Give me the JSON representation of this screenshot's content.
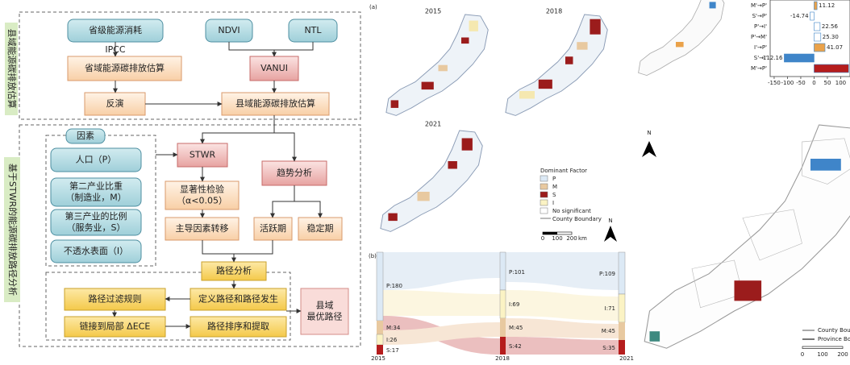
{
  "flowchart": {
    "section1_label": "县域能源碳排放估算",
    "section2_label": "基于STWR的能源碳排放路径分析",
    "provincial_energy": "省级能源消耗",
    "ndvi": "NDVI",
    "ntl": "NTL",
    "ipcc": "IPCC",
    "provincial_carbon": "省域能源碳排放估算",
    "vanui": "VANUI",
    "inversion": "反演",
    "county_carbon": "县域能源碳排放估算",
    "factors_title": "因素",
    "factors": [
      [
        "人口（P）"
      ],
      [
        "第二产业比重",
        "（制造业，M）"
      ],
      [
        "第三产业的比例",
        "（服务业，S）"
      ],
      [
        "不透水表面（I）"
      ]
    ],
    "stwr": "STWR",
    "significance": [
      "显著性检验",
      "（α<0.05）"
    ],
    "dominant_shift": "主导因素转移",
    "trend": "趋势分析",
    "active": "活跃期",
    "stable": "稳定期",
    "path_analysis": "路径分析",
    "filter": "路径过滤规则",
    "define": "定义路径和路径发生",
    "link": "链接到局部 ΔECE",
    "rank": "路径排序和提取",
    "optimal": [
      "县域",
      "最优路径"
    ]
  },
  "map_panel": {
    "label": "(a)",
    "years": [
      "2015",
      "2018",
      "2021"
    ],
    "legend": {
      "title": "Dominant Factor",
      "items": [
        "P",
        "M",
        "S",
        "I",
        "No significant"
      ],
      "boundary": "County  Boundary"
    },
    "scale": [
      "0",
      "100",
      "200"
    ],
    "scale_unit": "km",
    "north": "N"
  },
  "sankey": {
    "label": "(b)",
    "columns": [
      {
        "year": "2015",
        "nodes": [
          "P:180",
          "M:34",
          "I:26",
          "S:17"
        ]
      },
      {
        "year": "2018",
        "nodes": [
          "P:101",
          "I:69",
          "M:45",
          "S:42"
        ]
      },
      {
        "year": "2021",
        "nodes": [
          "P:109",
          "I:71",
          "M:45",
          "S:35"
        ]
      }
    ]
  },
  "bar_chart": {
    "type": "bar",
    "orientation": "horizontal",
    "categories": [
      "M'→P'",
      "S'→P'",
      "P'→I'",
      "P'→M'",
      "I'→P'",
      "S'→I'",
      "M'→P'"
    ],
    "values": [
      11.12,
      -14.74,
      22.56,
      25.3,
      41.07,
      -112.16,
      130
    ],
    "value_labels": [
      "11.12",
      "-14.74",
      "22.56",
      "25.30",
      "41.07",
      "-112.16",
      null
    ],
    "colors": [
      "#eaa24a",
      "#ffffff",
      "#ffffff",
      "#ffffff",
      "#eaa24a",
      "#3f85c9",
      "#b51d1d"
    ],
    "xlim": [
      -165,
      135
    ],
    "xticks": [
      -150,
      -100,
      -50,
      0,
      50,
      100
    ]
  },
  "right_map": {
    "north": "N",
    "legend": [
      "County Boundary",
      "Province Boundary"
    ],
    "scale": [
      "0",
      "100",
      "200"
    ]
  }
}
